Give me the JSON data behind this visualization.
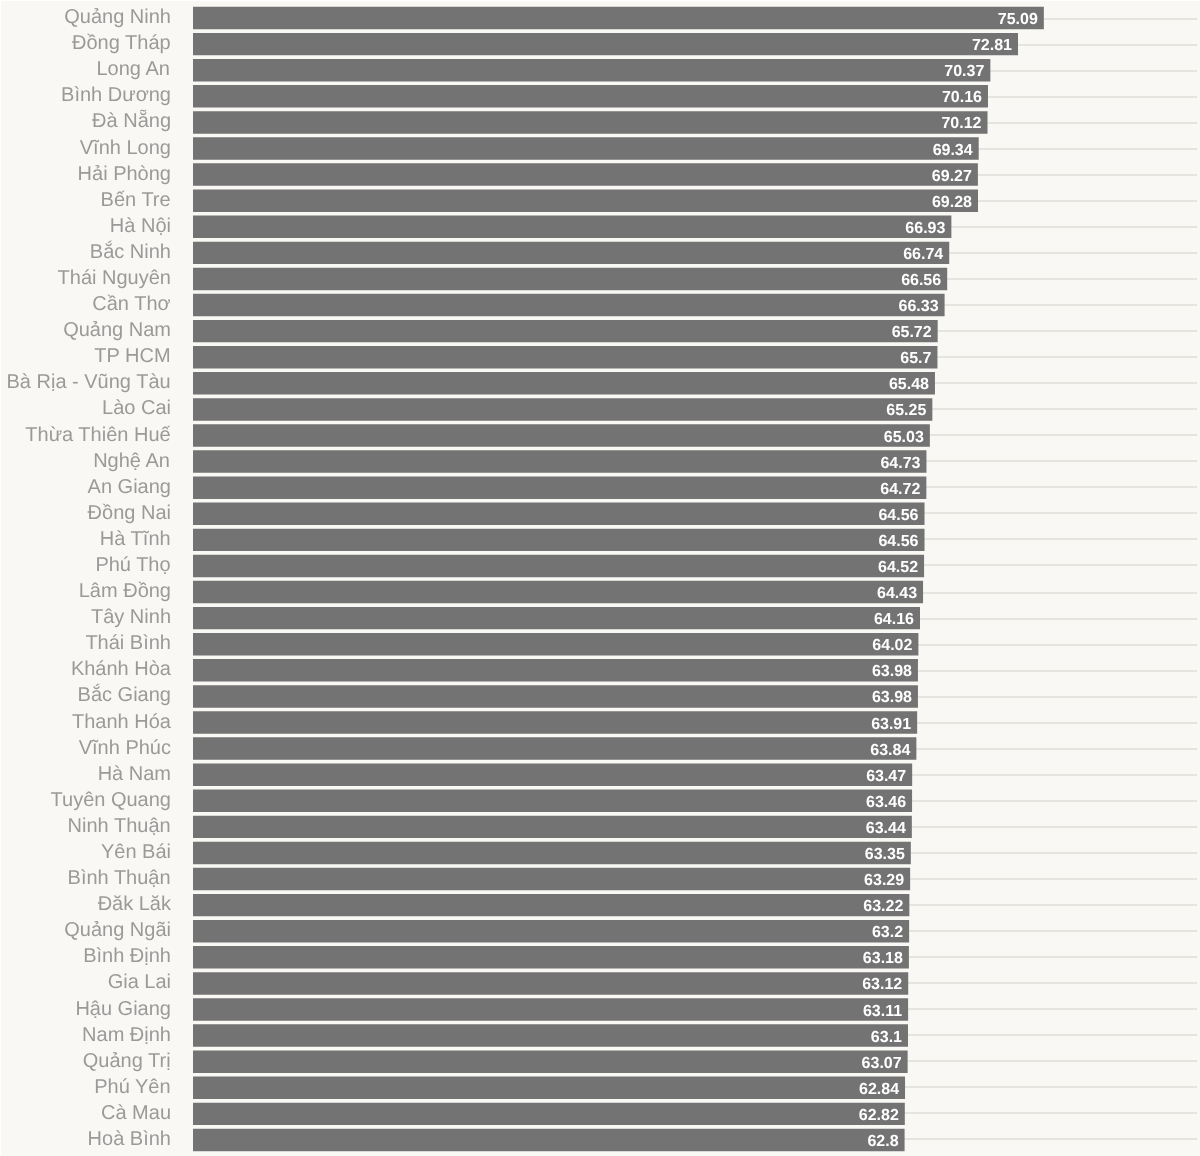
{
  "chart_data": {
    "type": "bar",
    "orientation": "horizontal",
    "color": "#737373",
    "data_labels": true,
    "grid": "y",
    "categories": [
      "Quảng Ninh",
      "Đồng Tháp",
      "Long An",
      "Bình Dương",
      "Đà Nẵng",
      "Vĩnh Long",
      "Hải Phòng",
      "Bến Tre",
      "Hà Nội",
      "Bắc Ninh",
      "Thái Nguyên",
      "Cần Thơ",
      "Quảng Nam",
      "TP HCM",
      "Bà Rịa - Vũng Tàu",
      "Lào Cai",
      "Thừa Thiên Huế",
      "Nghệ An",
      "An Giang",
      "Đồng Nai",
      "Hà Tĩnh",
      "Phú Thọ",
      "Lâm Đồng",
      "Tây Ninh",
      "Thái Bình",
      "Khánh Hòa",
      "Bắc Giang",
      "Thanh Hóa",
      "Vĩnh Phúc",
      "Hà Nam",
      "Tuyên Quang",
      "Ninh Thuận",
      "Yên Bái",
      "Bình Thuận",
      "Đăk Lăk",
      "Quảng Ngãi",
      "Bình Định",
      "Gia Lai",
      "Hậu Giang",
      "Nam Định",
      "Quảng Trị",
      "Phú Yên",
      "Cà Mau",
      "Hoà Bình"
    ],
    "values": [
      75.09,
      72.81,
      70.37,
      70.16,
      70.12,
      69.34,
      69.27,
      69.28,
      66.93,
      66.74,
      66.56,
      66.33,
      65.72,
      65.7,
      65.48,
      65.25,
      65.03,
      64.73,
      64.72,
      64.56,
      64.56,
      64.52,
      64.43,
      64.16,
      64.02,
      63.98,
      63.98,
      63.91,
      63.84,
      63.47,
      63.46,
      63.44,
      63.35,
      63.29,
      63.22,
      63.2,
      63.18,
      63.12,
      63.11,
      63.1,
      63.07,
      62.84,
      62.82,
      62.8
    ]
  }
}
